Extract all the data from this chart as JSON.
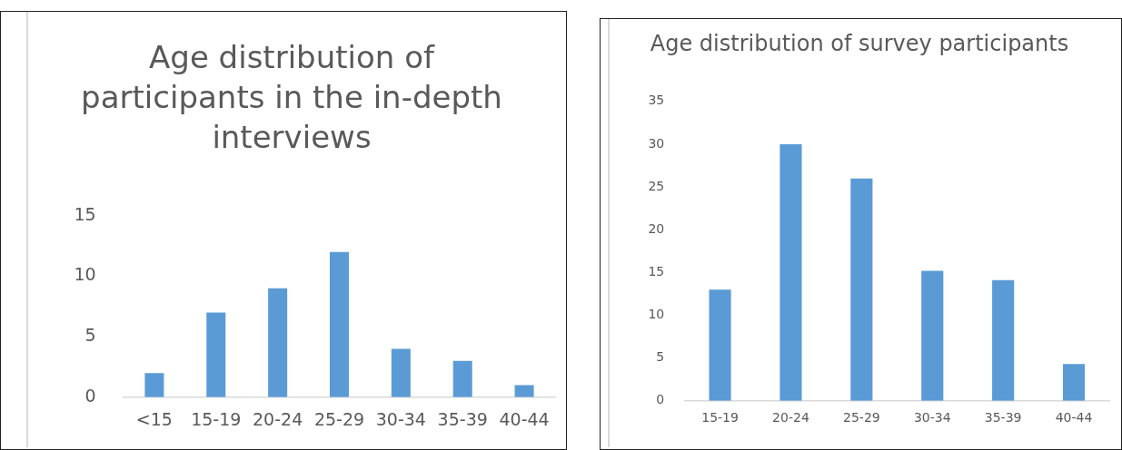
{
  "chart_data": [
    {
      "type": "bar",
      "title": "Age distribution of participants in the in-depth interviews",
      "categories": [
        "<15",
        "15-19",
        "20-24",
        "25-29",
        "30-34",
        "35-39",
        "40-44"
      ],
      "values": [
        2,
        7,
        9,
        12,
        4,
        3,
        1
      ],
      "color": "#5b9bd5",
      "ylim": [
        0,
        15
      ],
      "yticks": [
        0,
        5,
        10,
        15
      ],
      "grid": false,
      "legend": false
    },
    {
      "type": "bar",
      "title": "Age distribution of survey participants",
      "categories": [
        "15-19",
        "20-24",
        "25-29",
        "30-34",
        "35-39",
        "40-44"
      ],
      "values": [
        13,
        30,
        26,
        15.2,
        14.1,
        4.3
      ],
      "color": "#5b9bd5",
      "ylim": [
        0,
        35
      ],
      "yticks": [
        0,
        5,
        10,
        15,
        20,
        25,
        30,
        35
      ],
      "grid": false,
      "legend": false
    }
  ]
}
